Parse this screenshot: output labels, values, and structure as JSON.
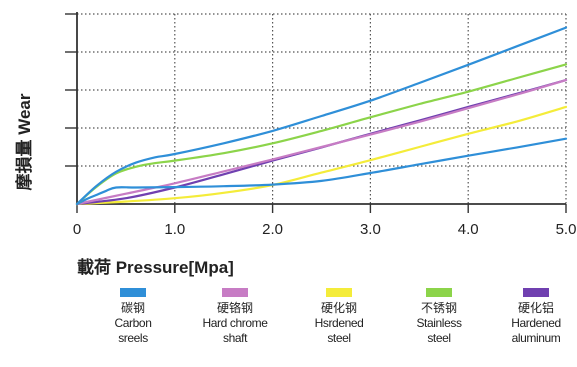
{
  "chart_data": {
    "type": "line",
    "xlabel": "載荷 Pressure[Mpa]",
    "ylabel": "摩損量 Wear",
    "xlim": [
      0,
      5
    ],
    "x_ticks": [
      "0",
      "1.0",
      "2.0",
      "3.0",
      "4.0",
      "5.0"
    ],
    "y_tick_count": 5,
    "grid": true,
    "grid_style": "dotted horizontal and vertical",
    "legend_placement": "bottom",
    "series": [
      {
        "name_cn": "碳钢",
        "name_en": "Carbon sreels",
        "color": "#2f8fd8",
        "x": [
          0,
          0.1,
          0.2,
          0.3,
          0.4,
          0.6,
          1.0,
          1.5,
          2.0,
          2.5,
          3.0,
          3.5,
          4.0,
          4.5,
          5.0
        ],
        "y": [
          0,
          0.12,
          0.22,
          0.32,
          0.4,
          0.4,
          0.41,
          0.43,
          0.47,
          0.56,
          0.75,
          0.96,
          1.17,
          1.37,
          1.58
        ]
      },
      {
        "name_cn": "硬铬钢",
        "name_en": "Hard chrome shaft",
        "color": "#c77cc4",
        "x": [
          0,
          0.5,
          1.0,
          1.5,
          2.0,
          2.5,
          3.0,
          3.5,
          4.0,
          4.5,
          5.0
        ],
        "y": [
          0,
          0.25,
          0.5,
          0.79,
          1.08,
          1.38,
          1.68,
          1.99,
          2.32,
          2.65,
          3.0
        ]
      },
      {
        "name_cn": "硬化钢",
        "name_en": "Hsrdened steel",
        "color": "#f4ec3a",
        "x": [
          0,
          0.5,
          1.0,
          1.5,
          2.0,
          2.5,
          3.0,
          3.5,
          4.0,
          4.5,
          5.0
        ],
        "y": [
          0,
          0.06,
          0.14,
          0.27,
          0.46,
          0.76,
          1.06,
          1.38,
          1.7,
          2.0,
          2.35
        ]
      },
      {
        "name_cn": "不锈钢",
        "name_en": "Stainless steel",
        "color": "#8cd44a",
        "x": [
          0,
          0.2,
          0.4,
          0.6,
          0.8,
          1.0,
          1.5,
          2.0,
          2.5,
          3.0,
          3.5,
          4.0,
          4.5,
          5.0
        ],
        "y": [
          0,
          0.42,
          0.74,
          0.9,
          0.99,
          1.05,
          1.23,
          1.47,
          1.77,
          2.1,
          2.42,
          2.72,
          3.05,
          3.38
        ]
      },
      {
        "name_cn": "硬化铝",
        "name_en": "Hardened aluminum",
        "color": "#7040b0",
        "x": [
          0,
          0.5,
          1.0,
          1.5,
          2.0,
          2.5,
          3.0,
          3.5,
          4.0,
          4.5,
          5.0
        ],
        "y": [
          0,
          0.14,
          0.4,
          0.72,
          1.05,
          1.37,
          1.7,
          2.02,
          2.35,
          2.67,
          3.0
        ]
      },
      {
        "name_cn": "",
        "name_en": "",
        "color": "#2f8fd8",
        "x": [
          0,
          0.2,
          0.4,
          0.6,
          0.8,
          1.0,
          1.5,
          2.0,
          2.5,
          3.0,
          3.5,
          4.0,
          4.5,
          5.0
        ],
        "y": [
          0,
          0.44,
          0.78,
          1.0,
          1.13,
          1.21,
          1.47,
          1.77,
          2.13,
          2.5,
          2.93,
          3.37,
          3.82,
          4.27
        ]
      }
    ],
    "legend_order": [
      0,
      1,
      2,
      3,
      4
    ]
  }
}
